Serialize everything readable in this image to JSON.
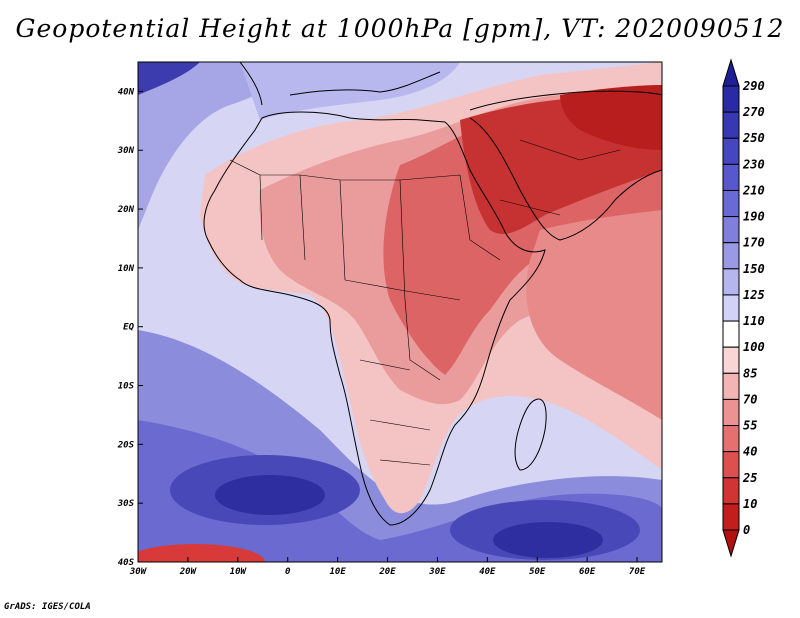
{
  "title": "Geopotential Height at 1000hPa [gpm], VT: 2020090512",
  "credit": "GrADS: IGES/COLA",
  "map": {
    "variable": "Geopotential Height",
    "level": "1000hPa",
    "units": "gpm",
    "valid_time": "2020090512",
    "lon_range": [
      -30,
      75
    ],
    "lat_range": [
      -40,
      45
    ],
    "lon_ticks": [
      {
        "value": -30,
        "label": "30W"
      },
      {
        "value": -20,
        "label": "20W"
      },
      {
        "value": -10,
        "label": "10W"
      },
      {
        "value": 0,
        "label": "0"
      },
      {
        "value": 10,
        "label": "10E"
      },
      {
        "value": 20,
        "label": "20E"
      },
      {
        "value": 30,
        "label": "30E"
      },
      {
        "value": 40,
        "label": "40E"
      },
      {
        "value": 50,
        "label": "50E"
      },
      {
        "value": 60,
        "label": "60E"
      },
      {
        "value": 70,
        "label": "70E"
      }
    ],
    "lat_ticks": [
      {
        "value": 40,
        "label": "40N"
      },
      {
        "value": 30,
        "label": "30N"
      },
      {
        "value": 20,
        "label": "20N"
      },
      {
        "value": 10,
        "label": "10N"
      },
      {
        "value": 0,
        "label": "EQ"
      },
      {
        "value": -10,
        "label": "10S"
      },
      {
        "value": -20,
        "label": "20S"
      },
      {
        "value": -30,
        "label": "30S"
      },
      {
        "value": -40,
        "label": "40S"
      }
    ]
  },
  "colorbar": {
    "levels": [
      "290",
      "270",
      "250",
      "230",
      "210",
      "190",
      "170",
      "150",
      "125",
      "110",
      "100",
      "85",
      "70",
      "55",
      "40",
      "25",
      "10",
      "0"
    ],
    "colors": [
      "#1e1e96",
      "#2a2aa6",
      "#3838b4",
      "#4646c0",
      "#5858cc",
      "#6a6ad6",
      "#8080dc",
      "#9a9ae4",
      "#b6b6ee",
      "#d2d2f6",
      "#ffffff",
      "#f8d6d6",
      "#f2b4b4",
      "#ec9292",
      "#e47070",
      "#dc5050",
      "#d03434",
      "#c21e1e",
      "#b01010"
    ]
  }
}
